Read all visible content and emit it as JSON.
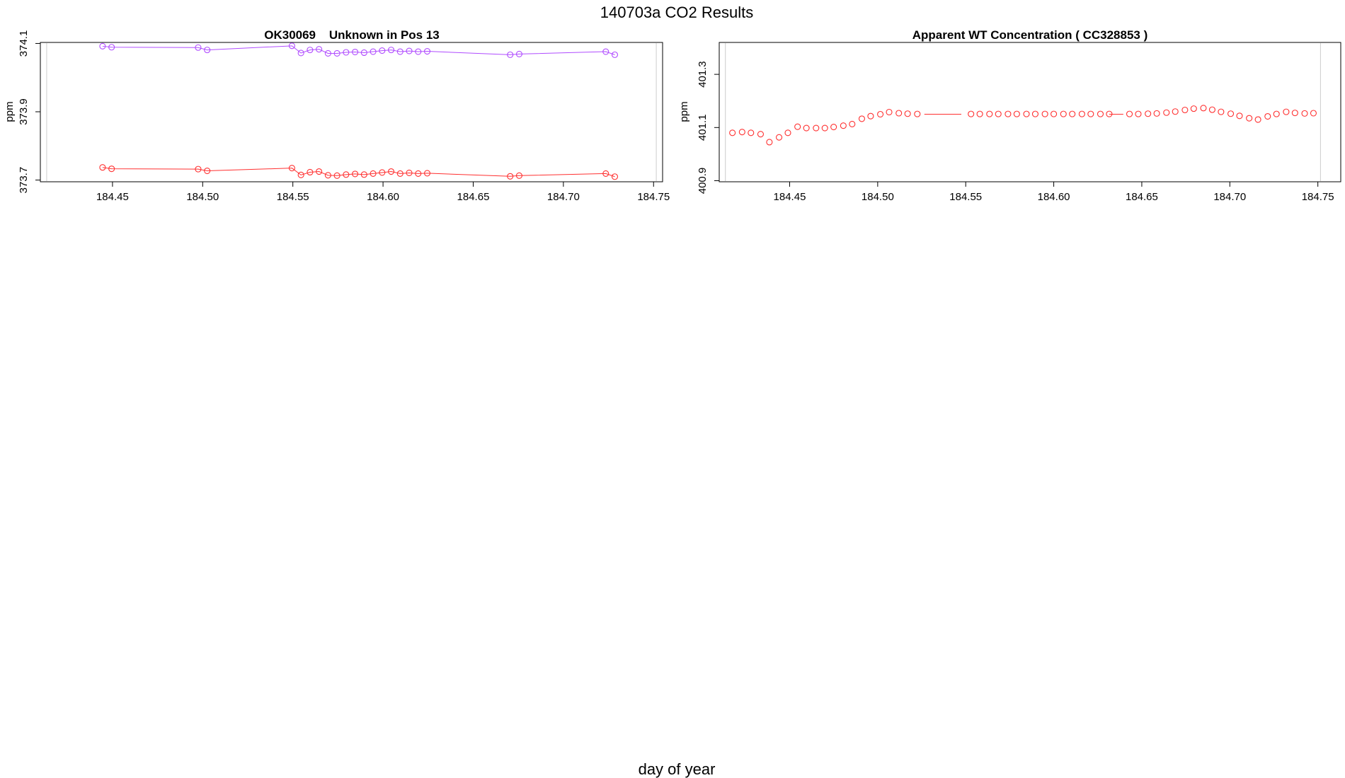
{
  "page": {
    "title": "140703a  CO2 Results",
    "xlabel": "day of year"
  },
  "colors": {
    "series_red": "#ff3030",
    "series_purple": "#b04cff",
    "axis": "#000000",
    "reference_line": "#cccccc"
  },
  "chart_data": [
    {
      "type": "line",
      "title": "OK30069    Unknown in Pos 13",
      "xlabel": "",
      "ylabel": "ppm",
      "xlim": [
        184.41,
        184.755
      ],
      "ylim": [
        373.695,
        374.103
      ],
      "xticks": [
        "184.45",
        "184.50",
        "184.55",
        "184.60",
        "184.65",
        "184.70",
        "184.75"
      ],
      "yticks": [
        "373.7",
        "373.9",
        "374.1"
      ],
      "reference_x": [
        184.4135,
        184.7515
      ],
      "markers": "open-circle",
      "series": [
        {
          "color_key": "series_purple",
          "x": [
            184.4445,
            184.4495,
            184.4975,
            184.5025,
            184.5495,
            184.5545,
            184.5595,
            184.5645,
            184.5695,
            184.5745,
            184.5795,
            184.5845,
            184.5895,
            184.5945,
            184.5995,
            184.6045,
            184.6095,
            184.6145,
            184.6195,
            184.6245,
            184.6705,
            184.6755,
            184.7235,
            184.7285
          ],
          "values": [
            374.092,
            374.089,
            374.088,
            374.081,
            374.093,
            374.072,
            374.081,
            374.083,
            374.071,
            374.071,
            374.074,
            374.075,
            374.073,
            374.076,
            374.079,
            374.081,
            374.076,
            374.078,
            374.076,
            374.077,
            374.067,
            374.069,
            374.076,
            374.067
          ]
        },
        {
          "color_key": "series_red",
          "x": [
            184.4445,
            184.4495,
            184.4975,
            184.5025,
            184.5495,
            184.5545,
            184.5595,
            184.5645,
            184.5695,
            184.5745,
            184.5795,
            184.5845,
            184.5895,
            184.5945,
            184.5995,
            184.6045,
            184.6095,
            184.6145,
            184.6195,
            184.6245,
            184.6705,
            184.6755,
            184.7235,
            184.7285
          ],
          "values": [
            373.737,
            373.733,
            373.732,
            373.727,
            373.735,
            373.715,
            373.723,
            373.725,
            373.714,
            373.713,
            373.716,
            373.718,
            373.716,
            373.719,
            373.722,
            373.725,
            373.719,
            373.721,
            373.719,
            373.72,
            373.711,
            373.713,
            373.719,
            373.71
          ]
        }
      ]
    },
    {
      "type": "scatter",
      "title": "Apparent WT Concentration ( CC328853 )",
      "xlabel": "",
      "ylabel": "ppm",
      "xlim": [
        184.41,
        184.763
      ],
      "ylim": [
        400.896,
        401.42
      ],
      "xticks": [
        "184.45",
        "184.50",
        "184.55",
        "184.60",
        "184.65",
        "184.70",
        "184.75"
      ],
      "yticks": [
        "400.9",
        "401.1",
        "401.3"
      ],
      "reference_x": [
        184.4135,
        184.7515
      ],
      "markers": "open-circle",
      "segments": [
        {
          "x": [
            184.5265,
            184.5475
          ],
          "values": [
            401.15,
            401.15
          ]
        },
        {
          "x": [
            184.6315,
            184.6395
          ],
          "values": [
            401.15,
            401.15
          ]
        }
      ],
      "series": [
        {
          "color_key": "series_red",
          "x": [
            184.4175,
            184.423,
            184.428,
            184.4335,
            184.4385,
            184.444,
            184.449,
            184.4545,
            184.4595,
            184.465,
            184.47,
            184.475,
            184.4805,
            184.4855,
            184.491,
            184.496,
            184.5015,
            184.5065,
            184.512,
            184.517,
            184.5225,
            184.553,
            184.558,
            184.5635,
            184.5685,
            184.574,
            184.579,
            184.5845,
            184.5895,
            184.595,
            184.6,
            184.6055,
            184.6105,
            184.616,
            184.621,
            184.6265,
            184.6315,
            184.643,
            184.648,
            184.6535,
            184.6585,
            184.664,
            184.669,
            184.6745,
            184.6795,
            184.685,
            184.69,
            184.695,
            184.7005,
            184.7055,
            184.711,
            184.716,
            184.7215,
            184.7265,
            184.732,
            184.737,
            184.7425,
            184.7475
          ],
          "values": [
            401.08,
            401.083,
            401.08,
            401.075,
            401.045,
            401.063,
            401.08,
            401.103,
            401.098,
            401.098,
            401.098,
            401.102,
            401.107,
            401.113,
            401.133,
            401.143,
            401.15,
            401.158,
            401.154,
            401.152,
            401.151,
            401.151,
            401.151,
            401.151,
            401.151,
            401.151,
            401.151,
            401.151,
            401.151,
            401.151,
            401.151,
            401.151,
            401.151,
            401.151,
            401.151,
            401.151,
            401.151,
            401.151,
            401.151,
            401.152,
            401.153,
            401.156,
            401.16,
            401.166,
            401.171,
            401.173,
            401.167,
            401.159,
            401.152,
            401.144,
            401.135,
            401.13,
            401.142,
            401.151,
            401.159,
            401.155,
            401.153,
            401.154
          ]
        }
      ]
    }
  ]
}
